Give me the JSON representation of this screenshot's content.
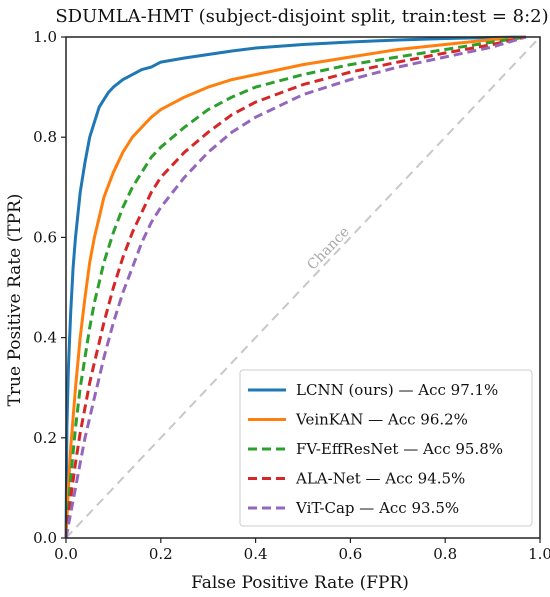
{
  "chart_data": {
    "type": "line",
    "title": "SDUMLA-HMT (subject-disjoint split, train:test = 8:2)",
    "xlabel": "False Positive Rate (FPR)",
    "ylabel": "True Positive Rate (TPR)",
    "xlim": [
      0.0,
      1.0
    ],
    "ylim": [
      0.0,
      1.0
    ],
    "xticks": [
      "0.0",
      "0.2",
      "0.4",
      "0.6",
      "0.8",
      "1.0"
    ],
    "yticks": [
      "0.0",
      "0.2",
      "0.4",
      "0.6",
      "0.8",
      "1.0"
    ],
    "grid": false,
    "legend_position": "bottom-right",
    "chance_label": "Chance",
    "chance_line": {
      "x": [
        0.0,
        1.0
      ],
      "y": [
        0.0,
        1.0
      ],
      "color": "#c8c8c8",
      "style": "dashed"
    },
    "series": [
      {
        "name": "LCNN (ours) — Acc 97.1%",
        "color": "#1f77b4",
        "style": "solid",
        "x": [
          0.0,
          0.002,
          0.005,
          0.01,
          0.015,
          0.02,
          0.03,
          0.04,
          0.05,
          0.06,
          0.07,
          0.08,
          0.09,
          0.1,
          0.12,
          0.14,
          0.16,
          0.18,
          0.2,
          0.25,
          0.3,
          0.35,
          0.4,
          0.5,
          0.6,
          0.7,
          0.8,
          0.9,
          0.97
        ],
        "y": [
          0.0,
          0.22,
          0.34,
          0.45,
          0.54,
          0.6,
          0.69,
          0.75,
          0.8,
          0.83,
          0.86,
          0.875,
          0.89,
          0.9,
          0.915,
          0.925,
          0.935,
          0.94,
          0.95,
          0.958,
          0.965,
          0.972,
          0.978,
          0.985,
          0.99,
          0.994,
          0.997,
          0.999,
          1.0
        ]
      },
      {
        "name": "VeinKAN — Acc 96.2%",
        "color": "#ff7f0e",
        "style": "solid",
        "x": [
          0.0,
          0.005,
          0.01,
          0.02,
          0.03,
          0.04,
          0.05,
          0.06,
          0.07,
          0.08,
          0.1,
          0.12,
          0.14,
          0.16,
          0.18,
          0.2,
          0.25,
          0.3,
          0.35,
          0.4,
          0.5,
          0.6,
          0.7,
          0.8,
          0.9,
          0.97
        ],
        "y": [
          0.0,
          0.1,
          0.18,
          0.3,
          0.4,
          0.48,
          0.55,
          0.6,
          0.64,
          0.68,
          0.73,
          0.77,
          0.8,
          0.82,
          0.84,
          0.855,
          0.88,
          0.9,
          0.915,
          0.925,
          0.945,
          0.96,
          0.975,
          0.985,
          0.995,
          1.0
        ]
      },
      {
        "name": "FV-EffResNet — Acc 95.8%",
        "color": "#2ca02c",
        "style": "dashed",
        "x": [
          0.0,
          0.01,
          0.02,
          0.03,
          0.04,
          0.05,
          0.06,
          0.07,
          0.08,
          0.1,
          0.12,
          0.14,
          0.16,
          0.18,
          0.2,
          0.25,
          0.3,
          0.35,
          0.4,
          0.5,
          0.6,
          0.7,
          0.8,
          0.9,
          0.97
        ],
        "y": [
          0.0,
          0.12,
          0.22,
          0.3,
          0.36,
          0.42,
          0.47,
          0.51,
          0.55,
          0.61,
          0.66,
          0.7,
          0.73,
          0.76,
          0.78,
          0.82,
          0.855,
          0.88,
          0.9,
          0.925,
          0.945,
          0.96,
          0.975,
          0.99,
          1.0
        ]
      },
      {
        "name": "ALA-Net — Acc 94.5%",
        "color": "#d62728",
        "style": "dashed",
        "x": [
          0.0,
          0.01,
          0.02,
          0.03,
          0.04,
          0.05,
          0.06,
          0.07,
          0.08,
          0.1,
          0.12,
          0.14,
          0.16,
          0.18,
          0.2,
          0.25,
          0.3,
          0.35,
          0.4,
          0.5,
          0.6,
          0.7,
          0.8,
          0.9,
          0.97
        ],
        "y": [
          0.0,
          0.08,
          0.15,
          0.21,
          0.26,
          0.31,
          0.35,
          0.39,
          0.43,
          0.5,
          0.56,
          0.61,
          0.65,
          0.69,
          0.72,
          0.77,
          0.81,
          0.845,
          0.87,
          0.905,
          0.93,
          0.95,
          0.968,
          0.985,
          1.0
        ]
      },
      {
        "name": "ViT-Cap — Acc 93.5%",
        "color": "#9467bd",
        "style": "dashed",
        "x": [
          0.0,
          0.01,
          0.02,
          0.03,
          0.04,
          0.05,
          0.06,
          0.07,
          0.08,
          0.1,
          0.12,
          0.14,
          0.16,
          0.18,
          0.2,
          0.25,
          0.3,
          0.35,
          0.4,
          0.5,
          0.6,
          0.7,
          0.8,
          0.9,
          0.97
        ],
        "y": [
          0.0,
          0.05,
          0.1,
          0.15,
          0.2,
          0.24,
          0.28,
          0.32,
          0.36,
          0.43,
          0.49,
          0.54,
          0.59,
          0.63,
          0.66,
          0.72,
          0.77,
          0.81,
          0.84,
          0.885,
          0.915,
          0.94,
          0.96,
          0.98,
          1.0
        ]
      }
    ]
  }
}
